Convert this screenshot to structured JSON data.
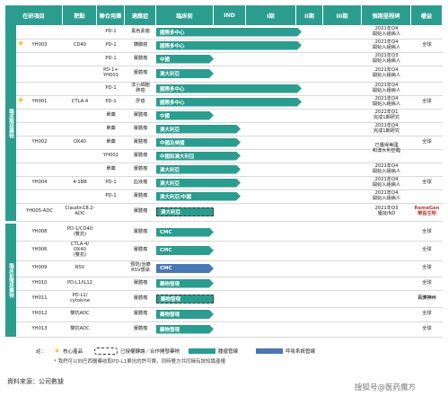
{
  "headers": [
    "在研項目",
    "靶點",
    "聯合用藥",
    "適應症",
    "臨床前",
    "IND",
    "I期",
    "II期",
    "III期",
    "預期里程碑",
    "權益"
  ],
  "sections": {
    "clinical": "臨床階段藥物",
    "preclinical": "臨床前階段藥物"
  },
  "rows": [
    {
      "drug": "",
      "target": "",
      "combo": "PD-1",
      "ind": "黑色素瘤",
      "bar": "國際多中心",
      "ms": "2021年Q4\n開始入組病人",
      "rights": ""
    },
    {
      "drug": "YH003",
      "target": "CD40",
      "combo": "PD-1",
      "ind": "胰腺癌",
      "bar": "國際多中心",
      "ms": "2021年Q4\n開始入組病人",
      "rights": "全球"
    },
    {
      "drug": "",
      "target": "",
      "combo": "PD-1",
      "ind": "實體瘤",
      "bar": "中國",
      "ms": "2021年Q3\n開始入組病人",
      "rights": ""
    },
    {
      "drug": "",
      "target": "",
      "combo": "PD-1+\nYH001",
      "ind": "實體瘤",
      "bar": "澳大利亞",
      "ms": "2021年Q4\n開始入組病人",
      "rights": ""
    },
    {
      "drug": "",
      "target": "",
      "combo": "PD-1",
      "ind": "非小細胞\n肺癌",
      "bar": "國際多中心",
      "ms": "2021年Q4\n開始入組病人",
      "rights": ""
    },
    {
      "drug": "YH001",
      "target": "CTLA-4",
      "combo": "PD-1",
      "ind": "肝癌",
      "bar": "國際多中心",
      "ms": "2021年Q4\n開始入組病人",
      "rights": "全球"
    },
    {
      "drug": "",
      "target": "",
      "combo": "單藥",
      "ind": "實體瘤",
      "bar": "中國",
      "ms": "2022年Q1\n完成1期研究",
      "rights": ""
    },
    {
      "drug": "",
      "target": "",
      "combo": "單藥",
      "ind": "實體瘤",
      "bar": "澳大利亞",
      "ms": "2021年Q4\n完成1期研究",
      "rights": ""
    },
    {
      "drug": "YH002",
      "target": "OX40",
      "combo": "單藥",
      "ind": "實體瘤",
      "bar": "中國及美國",
      "ms": "已獲得美國\n和澳大利亞臨",
      "rights": "全球"
    },
    {
      "drug": "",
      "target": "",
      "combo": "YH001",
      "ind": "實體瘤",
      "bar": "中國和澳大利亞",
      "ms": "床試驗批准",
      "rights": ""
    },
    {
      "drug": "",
      "target": "",
      "combo": "單藥",
      "ind": "實體瘤",
      "bar": "澳大利亞",
      "ms": "2021年Q4\n開始入組病人",
      "rights": ""
    },
    {
      "drug": "YH004",
      "target": "4-1BB",
      "combo": "PD-1",
      "ind": "血液瘤",
      "bar": "澳大利亞",
      "ms": "2021年Q4\n開始入組病人",
      "rights": "全球"
    },
    {
      "drug": "",
      "target": "",
      "combo": "PD-1",
      "ind": "實體瘤",
      "bar": "澳大利亞/中國",
      "ms": "2021年Q4\n開始入組病人",
      "rights": ""
    },
    {
      "drug": "YH005-ADC",
      "target": "Claudin18.2-\nADC",
      "combo": "",
      "ind": "實體瘤",
      "bar": "澳大利亞",
      "ms": "2021年Q3\n獲批IND",
      "rights": "RemeGen\n榮昌生物"
    },
    {
      "drug": "YH008",
      "target": "PD-1/CD40\n(雙抗)",
      "combo": "",
      "ind": "實體瘤",
      "bar": "CMC",
      "ms": "",
      "rights": "全球"
    },
    {
      "drug": "YH006",
      "target": "CTLA-4/\nOX40\n(雙抗)",
      "combo": "",
      "ind": "實體瘤",
      "bar": "CMC",
      "ms": "",
      "rights": "全球"
    },
    {
      "drug": "YH009",
      "target": "RSV",
      "combo": "",
      "ind": "預防/治療\nRSV感染",
      "bar": "CMC",
      "ms": "",
      "rights": "全球"
    },
    {
      "drug": "YH010",
      "target": "PD-L1/IL12",
      "combo": "",
      "ind": "實體瘤",
      "bar": "藥物發現",
      "ms": "",
      "rights": "全球"
    },
    {
      "drug": "YH011",
      "target": "PD-L1/\ncytokine",
      "combo": "",
      "ind": "實體瘤",
      "bar": "藥物發現",
      "ms": "",
      "rights": "百濟神州"
    },
    {
      "drug": "YH012",
      "target": "雙抗ADC",
      "combo": "",
      "ind": "實體瘤",
      "bar": "藥物發現",
      "ms": "",
      "rights": "全球"
    },
    {
      "drug": "YH013",
      "target": "雙抗ADC",
      "combo": "",
      "ind": "實體瘤",
      "bar": "藥物發現",
      "ms": "",
      "rights": "全球"
    }
  ],
  "legend": {
    "note_label": "註：",
    "core": "核心產品",
    "licensed": "已授權轉讓／合作開發藥物",
    "oncology": "腫瘤管線",
    "respiratory": "呼吸系統管線"
  },
  "footnote": "* 我們可以向巴西醫藥收取PD-L1單抗的許可費，同時雙方共同擁有該知識產權",
  "source": "資料來源：公司數據",
  "watermark": "搜狐号@医药魔方",
  "colors": {
    "oncology": "#2a9d8f",
    "respiratory": "#4a78b5",
    "star": "#f2c12e"
  }
}
